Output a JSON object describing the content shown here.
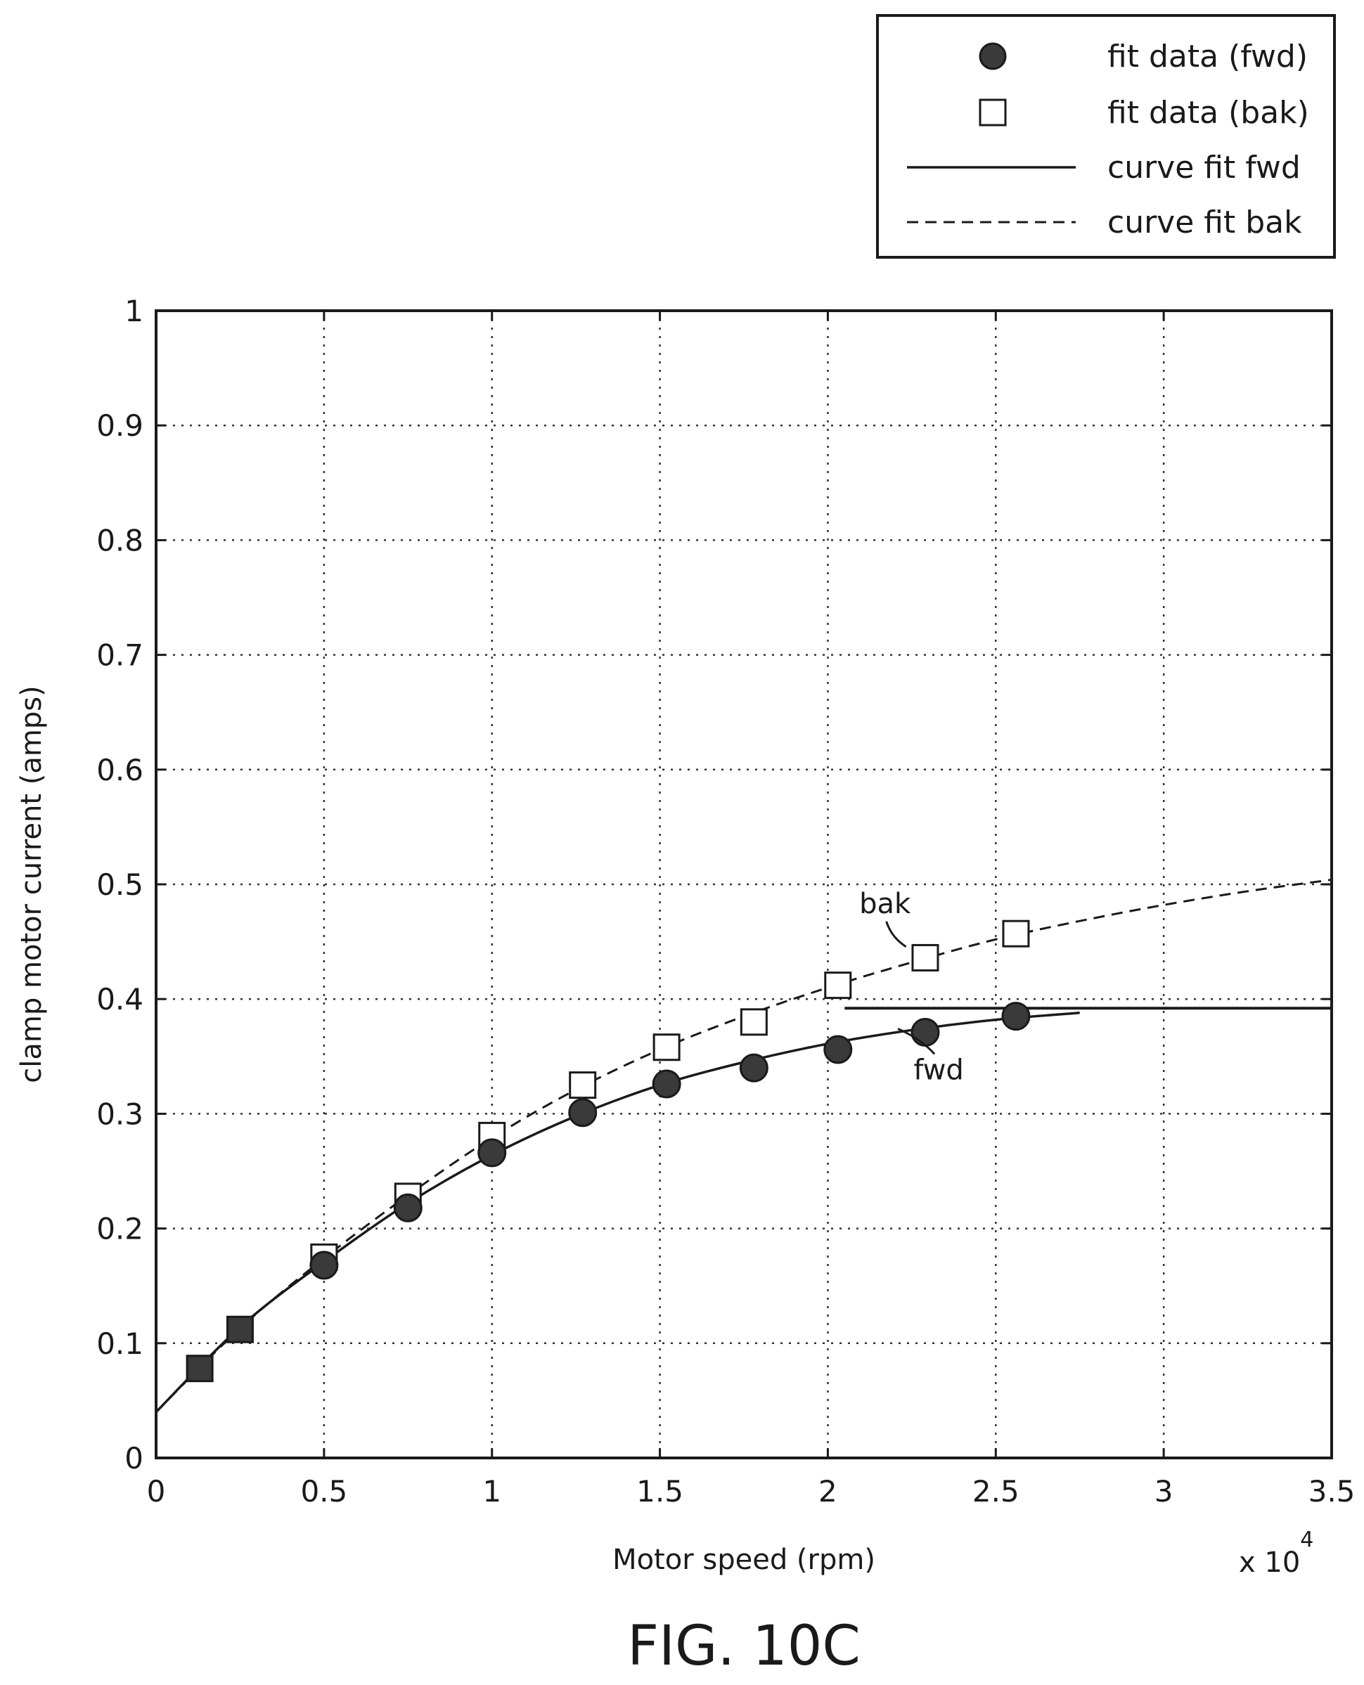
{
  "chart_data": {
    "type": "scatter",
    "title": "",
    "xlabel": "Motor speed (rpm)",
    "ylabel": "clamp motor current (amps)",
    "x_multiplier_label": "x 10",
    "x_multiplier_exponent": "4",
    "xlim": [
      0,
      3.5
    ],
    "ylim": [
      0,
      1
    ],
    "x_ticks": [
      "0",
      "0.5",
      "1",
      "1.5",
      "2",
      "2.5",
      "3",
      "3.5"
    ],
    "y_ticks": [
      "0",
      "0.1",
      "0.2",
      "0.3",
      "0.4",
      "0.5",
      "0.6",
      "0.7",
      "0.8",
      "0.9",
      "1"
    ],
    "grid": true,
    "legend_position": "top-right",
    "legend": [
      "fit data (fwd)",
      "fit data (bak)",
      "curve fit fwd",
      "curve fit bak"
    ],
    "series": [
      {
        "name": "fit data (fwd)",
        "marker": "filled-circle",
        "x": [
          0.13,
          0.25,
          0.5,
          0.75,
          1.0,
          1.27,
          1.52,
          1.78,
          2.03,
          2.29,
          2.56
        ],
        "y": [
          0.078,
          0.112,
          0.168,
          0.218,
          0.266,
          0.301,
          0.326,
          0.34,
          0.356,
          0.371,
          0.385
        ]
      },
      {
        "name": "fit data (bak)",
        "marker": "open-square",
        "x": [
          0.13,
          0.25,
          0.5,
          0.75,
          1.0,
          1.27,
          1.52,
          1.78,
          2.03,
          2.29,
          2.56
        ],
        "y": [
          0.078,
          0.112,
          0.175,
          0.228,
          0.281,
          0.325,
          0.358,
          0.38,
          0.412,
          0.436,
          0.457
        ]
      },
      {
        "name": "curve fit fwd",
        "style": "solid",
        "x": [
          0,
          0.25,
          0.5,
          0.75,
          1.0,
          1.25,
          1.5,
          1.75,
          2.0,
          2.25,
          2.5,
          2.75
        ],
        "y": [
          0.04,
          0.114,
          0.171,
          0.222,
          0.264,
          0.298,
          0.325,
          0.345,
          0.361,
          0.373,
          0.382,
          0.388
        ]
      },
      {
        "name": "curve fit bak",
        "style": "dashed",
        "x": [
          0,
          0.25,
          0.5,
          0.75,
          1.0,
          1.25,
          1.5,
          1.75,
          2.0,
          2.25,
          2.5,
          2.75,
          3.0,
          3.25,
          3.5
        ],
        "y": [
          0.04,
          0.113,
          0.174,
          0.229,
          0.279,
          0.321,
          0.356,
          0.385,
          0.41,
          0.432,
          0.452,
          0.468,
          0.482,
          0.494,
          0.504
        ]
      }
    ],
    "reference_line": {
      "y": 0.392,
      "x_from": 2.05,
      "x_to": 3.5
    },
    "annotations": [
      {
        "text": "bak",
        "x": 2.17,
        "y": 0.475
      },
      {
        "text": "fwd",
        "x": 2.33,
        "y": 0.33
      }
    ]
  },
  "caption": "FIG. 10C"
}
